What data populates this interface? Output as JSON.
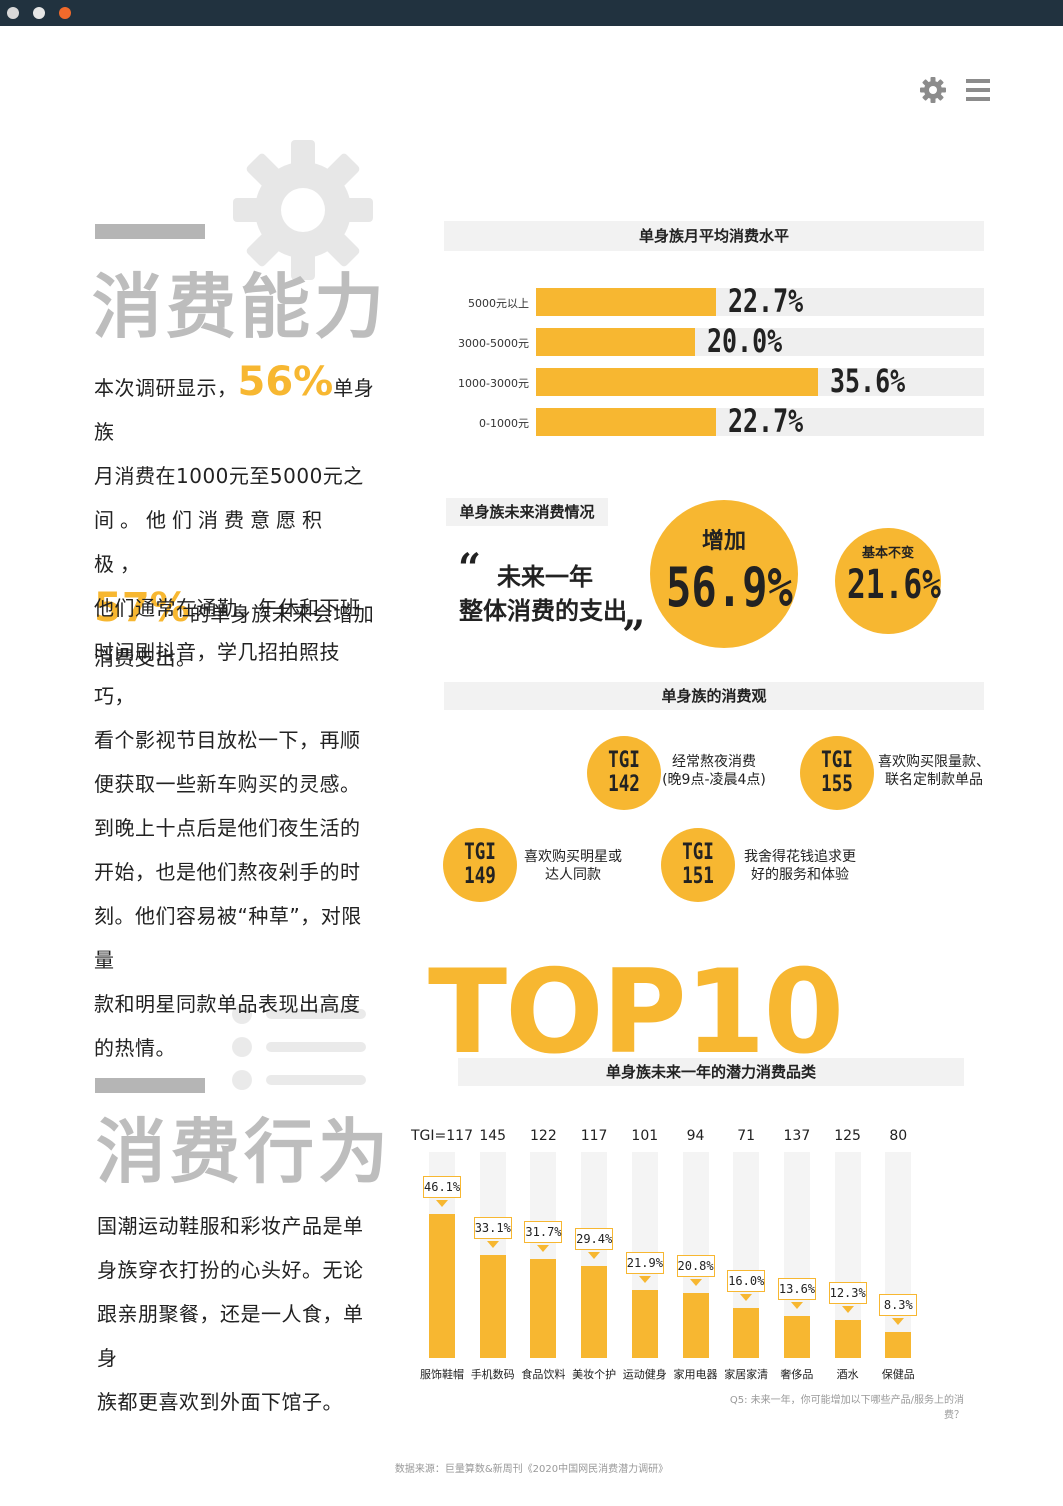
{
  "section1": {
    "title": "消费能力",
    "intro_a": "本次调研显示，",
    "intro_pct1": "56%",
    "intro_b": "单身族",
    "intro_c": "月消费在1000元至5000元之",
    "intro_d": "间。他们消费意愿积极，",
    "intro_pct2": "57%",
    "intro_e": "的单身族未来会增加",
    "intro_f": "消费支出。",
    "para2_lines": [
      "他们通常在通勤、午休和下班",
      "时间刷抖音，学几招拍照技巧，",
      "看个影视节目放松一下，再顺",
      "便获取一些新车购买的灵感。",
      "到晚上十点后是他们夜生活的",
      "开始，也是他们熬夜剁手的时",
      "刻。他们容易被“种草”，对限量",
      "款和明星同款单品表现出高度",
      "的热情。"
    ]
  },
  "section2": {
    "title": "消费行为",
    "para_lines": [
      "国潮运动鞋服和彩妆产品是单",
      "身族穿衣打扮的心头好。无论",
      "跟亲朋聚餐，还是一人食，单身",
      "族都更喜欢到外面下馆子。"
    ]
  },
  "future": {
    "header": "单身族未来消费情况",
    "quote_line1": "未来一年",
    "quote_line2": "整体消费的支出",
    "increase_label": "增加",
    "increase_value": "56.9%",
    "same_label": "基本不变",
    "same_value": "21.6%"
  },
  "values_section": {
    "header": "单身族的消费观",
    "items": [
      {
        "tgi_label": "TGI",
        "tgi_value": "142",
        "line1": "经常熬夜消费",
        "line2": "(晚9点-凌晨4点)"
      },
      {
        "tgi_label": "TGI",
        "tgi_value": "155",
        "line1": "喜欢购买限量款、",
        "line2": "联名定制款单品"
      },
      {
        "tgi_label": "TGI",
        "tgi_value": "149",
        "line1": "喜欢购买明星或",
        "line2": "达人同款"
      },
      {
        "tgi_label": "TGI",
        "tgi_value": "151",
        "line1": "我舍得花钱追求更",
        "line2": "好的服务和体验"
      }
    ]
  },
  "top10": {
    "big_text": "TOP10",
    "subtitle": "单身族未来一年的潜力消费品类",
    "footnote": "Q5: 未来一年，你可能增加以下哪些产品/服务上的消费？"
  },
  "source": "数据来源：巨量算数&新周刊《2020中国网民消费潜力调研》",
  "chart_data": [
    {
      "type": "bar",
      "orientation": "horizontal",
      "title": "单身族月平均消费水平",
      "categories": [
        "5000元以上",
        "3000-5000元",
        "1000-3000元",
        "0-1000元"
      ],
      "values": [
        22.7,
        20.0,
        35.6,
        22.7
      ],
      "value_labels": [
        "22.7%",
        "20.0%",
        "35.6%",
        "22.7%"
      ],
      "xlim": [
        0,
        100
      ]
    },
    {
      "type": "bar",
      "title": "单身族未来一年的潜力消费品类",
      "categories": [
        "服饰鞋帽",
        "手机数码",
        "食品饮料",
        "美妆个护",
        "运动健身",
        "家用电器",
        "家居家清",
        "奢侈品",
        "酒水",
        "保健品"
      ],
      "values": [
        46.1,
        33.1,
        31.7,
        29.4,
        21.9,
        20.8,
        16.0,
        13.6,
        12.3,
        8.3
      ],
      "value_labels": [
        "46.1%",
        "33.1%",
        "31.7%",
        "29.4%",
        "21.9%",
        "20.8%",
        "16.0%",
        "13.6%",
        "12.3%",
        "8.3%"
      ],
      "tgi_labels": [
        "TGI=117",
        "145",
        "122",
        "117",
        "101",
        "94",
        "71",
        "137",
        "125",
        "80"
      ],
      "ylim": [
        0,
        100
      ]
    }
  ],
  "colors": {
    "accent": "#f7b731",
    "grey_title": "#bdbdbd",
    "topbar": "#21323f"
  },
  "icons": {
    "settings": "gear-icon",
    "menu": "menu-icon"
  }
}
